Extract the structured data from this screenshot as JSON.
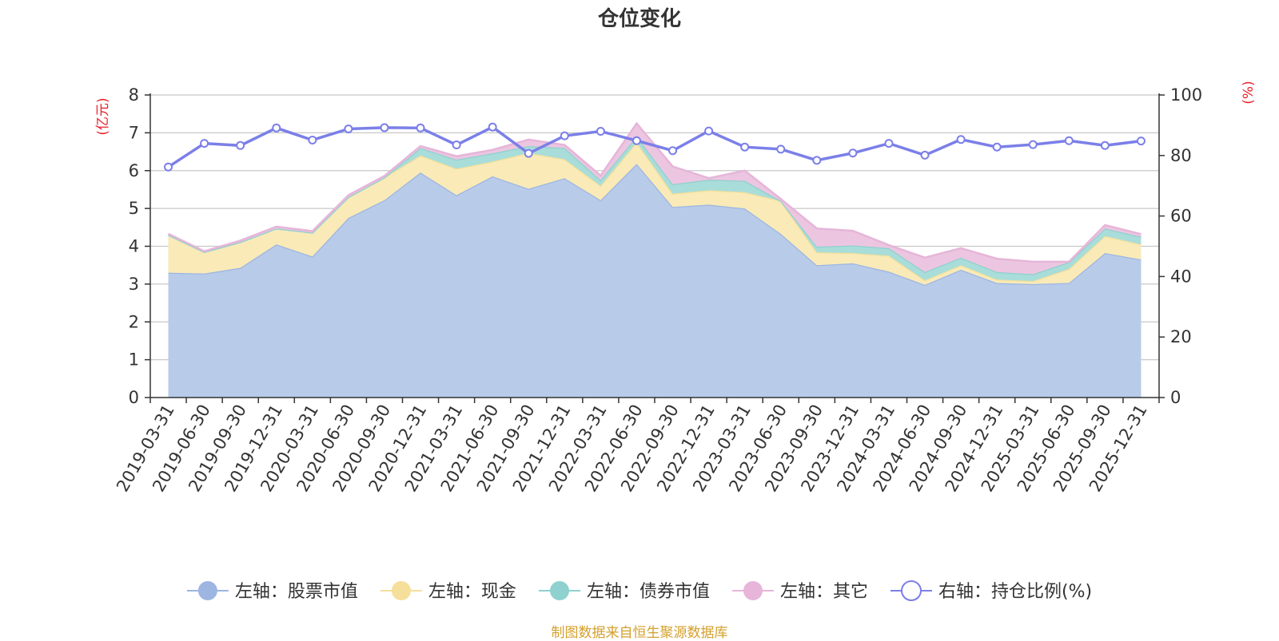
{
  "chart_data": {
    "type": "area",
    "title": "仓位变化",
    "left_axis_unit": "(亿元)",
    "right_axis_unit": "(%)",
    "y_left_lim": [
      0,
      8
    ],
    "y_left_ticks": [
      0,
      1,
      2,
      3,
      4,
      5,
      6,
      7,
      8
    ],
    "y_right_lim": [
      0,
      100
    ],
    "y_right_ticks": [
      0,
      20,
      40,
      60,
      80,
      100
    ],
    "grid": true,
    "legend_position": "bottom",
    "x": [
      "2019-03-31",
      "2019-06-30",
      "2019-09-30",
      "2019-12-31",
      "2020-03-31",
      "2020-06-30",
      "2020-09-30",
      "2020-12-31",
      "2021-03-31",
      "2021-06-30",
      "2021-09-30",
      "2021-12-31",
      "2022-03-31",
      "2022-06-30",
      "2022-09-30",
      "2022-12-31",
      "2023-03-31",
      "2023-06-30",
      "2023-09-30",
      "2023-12-31",
      "2024-03-31",
      "2024-06-30",
      "2024-09-30",
      "2024-12-31",
      "2025-03-31",
      "2025-06-30",
      "2025-09-30",
      "2025-12-31"
    ],
    "series": [
      {
        "name": "左轴：股票市值",
        "axis": "left",
        "stacked": true,
        "color": "#9db5e1",
        "fill": "#b8cbe9",
        "values": [
          3.3,
          3.28,
          3.43,
          4.05,
          3.73,
          4.75,
          5.22,
          5.95,
          5.35,
          5.85,
          5.52,
          5.8,
          5.22,
          6.18,
          5.04,
          5.1,
          5.0,
          4.33,
          3.5,
          3.55,
          3.33,
          2.98,
          3.38,
          3.03,
          3.0,
          3.03,
          3.82,
          3.65
        ]
      },
      {
        "name": "左轴：现金",
        "axis": "left",
        "stacked": true,
        "color": "#f5df9a",
        "fill": "#f9eab8",
        "values": [
          1.0,
          0.57,
          0.68,
          0.42,
          0.63,
          0.55,
          0.6,
          0.45,
          0.7,
          0.39,
          0.95,
          0.5,
          0.38,
          0.57,
          0.35,
          0.38,
          0.43,
          0.87,
          0.34,
          0.27,
          0.42,
          0.12,
          0.12,
          0.09,
          0.08,
          0.37,
          0.45,
          0.4
        ]
      },
      {
        "name": "左轴：债券市值",
        "axis": "left",
        "stacked": true,
        "color": "#8ed1cf",
        "fill": "#a9ddd9",
        "values": [
          0,
          0,
          0,
          0,
          0,
          0,
          0,
          0.2,
          0.24,
          0.22,
          0.18,
          0.3,
          0.15,
          0.15,
          0.25,
          0.28,
          0.3,
          0,
          0.15,
          0.2,
          0.2,
          0.22,
          0.2,
          0.2,
          0.18,
          0.18,
          0.2,
          0.2
        ]
      },
      {
        "name": "左轴：其它",
        "axis": "left",
        "stacked": true,
        "color": "#e6b5d9",
        "fill": "#ecc6e0",
        "values": [
          0.03,
          0.02,
          0.04,
          0.05,
          0.04,
          0.05,
          0.04,
          0.05,
          0.09,
          0.09,
          0.17,
          0.08,
          0.12,
          0.35,
          0.47,
          0.04,
          0.27,
          0.05,
          0.48,
          0.39,
          0.08,
          0.38,
          0.25,
          0.35,
          0.33,
          0.01,
          0.09,
          0.07
        ]
      },
      {
        "name": "右轴：持仓比例(%)",
        "axis": "right",
        "stacked": false,
        "color": "#7b7fe8",
        "values": [
          76.2,
          84.0,
          83.3,
          89.1,
          85.1,
          88.8,
          89.2,
          89.1,
          83.5,
          89.4,
          80.7,
          86.5,
          88.0,
          84.9,
          81.6,
          88.1,
          82.8,
          82.1,
          78.4,
          80.8,
          84.0,
          80.1,
          85.3,
          82.8,
          83.6,
          84.9,
          83.3,
          84.8
        ]
      }
    ]
  },
  "footer": {
    "source_text": "制图数据来自恒生聚源数据库"
  }
}
